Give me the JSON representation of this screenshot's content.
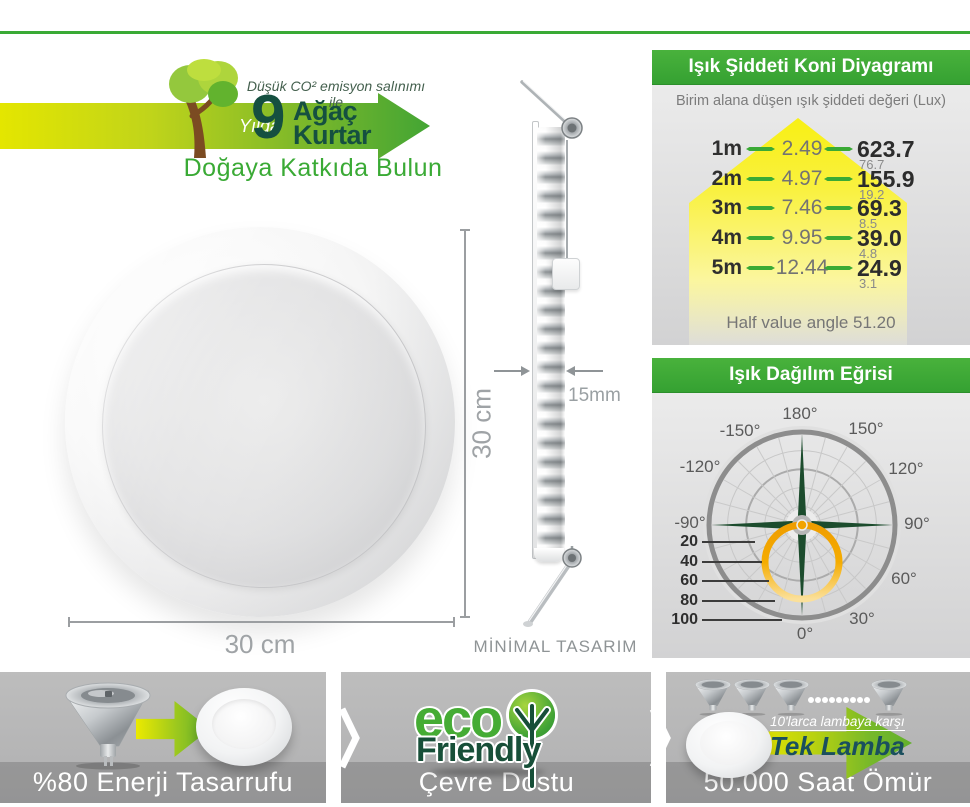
{
  "eco_banner": {
    "tagline": "Düşük CO² emisyon salınımı ile",
    "arrow_word": "Yılda",
    "big_number": "9",
    "headline_line1": "Ağaç",
    "headline_line2": "Kurtar",
    "subtitle": "Doğaya Katkıda Bulun"
  },
  "product": {
    "width_label": "30 cm",
    "height_label": "30 cm",
    "thickness_label": "15mm",
    "design_caption": "MİNİMAL TASARIM"
  },
  "chart_data": [
    {
      "type": "table",
      "title": "Işık Şiddeti Koni Diyagramı",
      "subtitle": "Birim alana düşen ışık şiddeti değeri (Lux)",
      "unit": "Lux",
      "cone_color": "#f8ef00",
      "rows": [
        {
          "distance": "1m",
          "beam_width_m": "2.49",
          "lux_center": "623.7",
          "lux_edge": "76.7"
        },
        {
          "distance": "2m",
          "beam_width_m": "4.97",
          "lux_center": "155.9",
          "lux_edge": "19.2"
        },
        {
          "distance": "3m",
          "beam_width_m": "7.46",
          "lux_center": "69.3",
          "lux_edge": "8.5"
        },
        {
          "distance": "4m",
          "beam_width_m": "9.95",
          "lux_center": "39.0",
          "lux_edge": "4.8"
        },
        {
          "distance": "5m",
          "beam_width_m": "12.44",
          "lux_center": "24.9",
          "lux_edge": "3.1"
        }
      ],
      "footer": "Half value angle 51.20"
    },
    {
      "type": "polar",
      "title": "Işık Dağılım Eğrisi",
      "angle_labels": [
        "180°",
        "-150°",
        "150°",
        "-120°",
        "120°",
        "-90°",
        "90°",
        "60°",
        "30°",
        "0°"
      ],
      "radial_labels": [
        "20",
        "40",
        "60",
        "80",
        "100"
      ],
      "angle_step_deg": 15,
      "radial_max": 100,
      "half_value_angle_deg": 51.2,
      "curve_color": "#f2a300",
      "axis_color": "#1c4c2d",
      "curve_points_deg_intensity": [
        [
          -90,
          3
        ],
        [
          -60,
          38
        ],
        [
          -45,
          54
        ],
        [
          -30,
          66
        ],
        [
          -15,
          74
        ],
        [
          0,
          77
        ],
        [
          15,
          74
        ],
        [
          30,
          66
        ],
        [
          45,
          54
        ],
        [
          60,
          38
        ],
        [
          90,
          3
        ]
      ]
    }
  ],
  "bottom_cards": {
    "energy": {
      "caption": "%80 Enerji Tasarrufu"
    },
    "eco": {
      "caption": "Çevre Dostu",
      "logo_line1": "eco",
      "logo_line2": "Friendly"
    },
    "life": {
      "caption": "50.000 Saat Ömür",
      "arrow_small_text": "10'larca lambaya karşı",
      "arrow_big_text": "Tek Lamba"
    }
  },
  "colors": {
    "accent_green": "#3aaa35",
    "dark_green_text": "#155040",
    "cone_yellow": "#f8ef00",
    "curve_orange": "#f2a300",
    "teal_text": "#1a4f5e"
  }
}
